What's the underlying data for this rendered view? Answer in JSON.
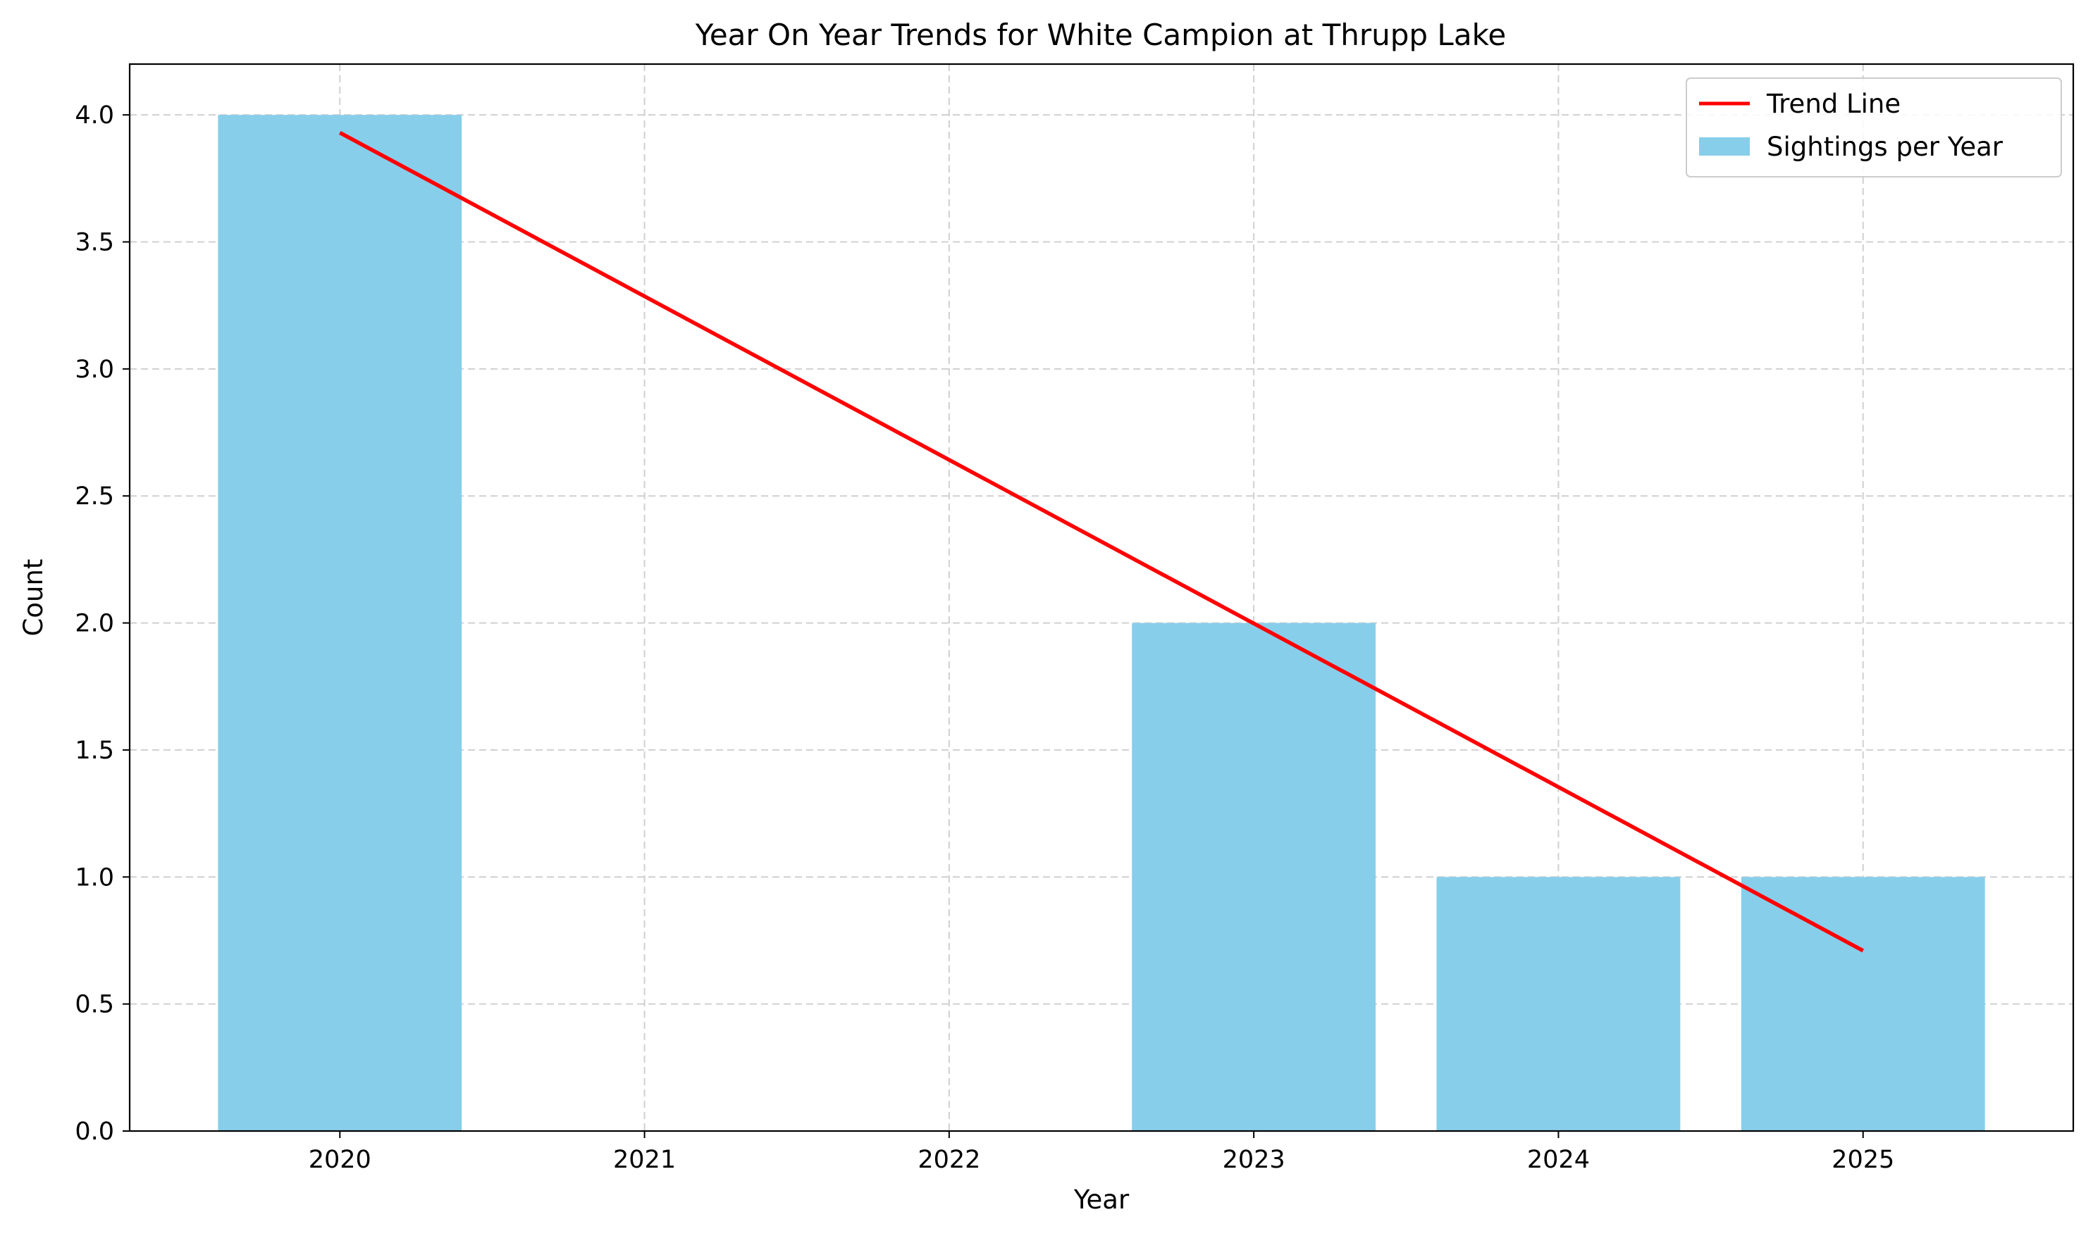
{
  "chart_data": {
    "type": "bar",
    "title": "Year On Year Trends for White Campion at Thrupp Lake",
    "xlabel": "Year",
    "ylabel": "Count",
    "categories": [
      "2020",
      "2021",
      "2022",
      "2023",
      "2024",
      "2025"
    ],
    "x": [
      2020,
      2021,
      2022,
      2023,
      2024,
      2025
    ],
    "xlim": [
      2019.31,
      2025.69
    ],
    "ylim": [
      0,
      4.2
    ],
    "yticks": [
      0.0,
      0.5,
      1.0,
      1.5,
      2.0,
      2.5,
      3.0,
      3.5,
      4.0
    ],
    "ytick_labels": [
      "0.0",
      "0.5",
      "1.0",
      "1.5",
      "2.0",
      "2.5",
      "3.0",
      "3.5",
      "4.0"
    ],
    "grid": true,
    "legend_position": "top-right",
    "series": [
      {
        "name": "Sightings per Year",
        "type": "bar",
        "color": "#87CEEB",
        "values": [
          4,
          0,
          0,
          2,
          1,
          1
        ]
      },
      {
        "name": "Trend Line",
        "type": "line",
        "color": "#ff0000",
        "x": [
          2020,
          2025
        ],
        "values": [
          3.93,
          0.71
        ]
      }
    ]
  }
}
